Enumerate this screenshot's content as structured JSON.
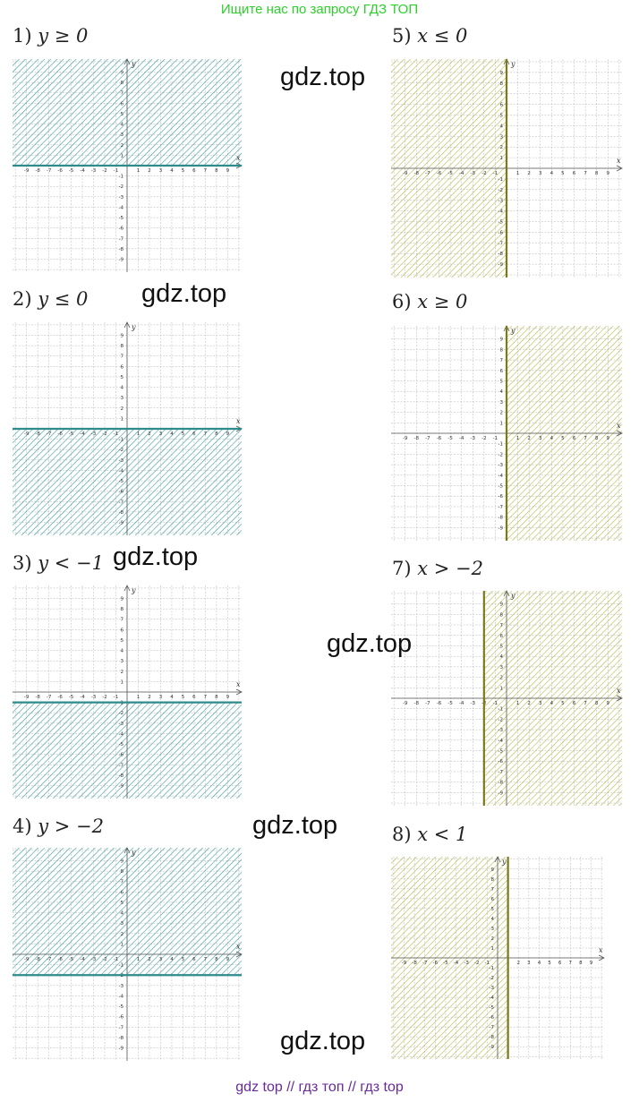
{
  "banner": "Ищите нас по запросу ГДЗ ТОП",
  "footer": "gdz top  //  гдз топ  //  гдз top",
  "watermark": "gdz.top",
  "axis_labels": {
    "x": "x",
    "y": "y"
  },
  "colors": {
    "teal_line": "#2e8b8b",
    "teal_hatch": "#3a9a9a",
    "olive_line": "#7a7a1a",
    "olive_hatch": "#b8b84a",
    "grid": "#b5b5b5"
  },
  "problems": [
    {
      "num": "1)",
      "expr": "y ≥ 0"
    },
    {
      "num": "2)",
      "expr": "y ≤ 0"
    },
    {
      "num": "3)",
      "expr": "y < −1"
    },
    {
      "num": "4)",
      "expr": "y > −2"
    },
    {
      "num": "5)",
      "expr": "x ≤ 0"
    },
    {
      "num": "6)",
      "expr": "x ≥ 0"
    },
    {
      "num": "7)",
      "expr": "x > −2"
    },
    {
      "num": "8)",
      "expr": "x < 1"
    }
  ],
  "graphs": [
    {
      "var": "y",
      "op": "ge",
      "bound": 0
    },
    {
      "var": "y",
      "op": "le",
      "bound": 0
    },
    {
      "var": "y",
      "op": "lt",
      "bound": -1
    },
    {
      "var": "y",
      "op": "gt",
      "bound": -2
    },
    {
      "var": "x",
      "op": "le",
      "bound": 0
    },
    {
      "var": "x",
      "op": "ge",
      "bound": 0
    },
    {
      "var": "x",
      "op": "gt",
      "bound": -2
    },
    {
      "var": "x",
      "op": "lt",
      "bound": 1
    }
  ],
  "x_ticks": [
    "-9",
    "-8",
    "-7",
    "-6",
    "-5",
    "-4",
    "-3",
    "-2",
    "-1",
    "1",
    "2",
    "3",
    "4",
    "5",
    "6",
    "7",
    "8",
    "9"
  ],
  "y_ticks": [
    "9",
    "8",
    "7",
    "6",
    "5",
    "4",
    "3",
    "2",
    "1",
    "-1",
    "-2",
    "-3",
    "-4",
    "-5",
    "-6",
    "-7",
    "-8",
    "-9"
  ]
}
